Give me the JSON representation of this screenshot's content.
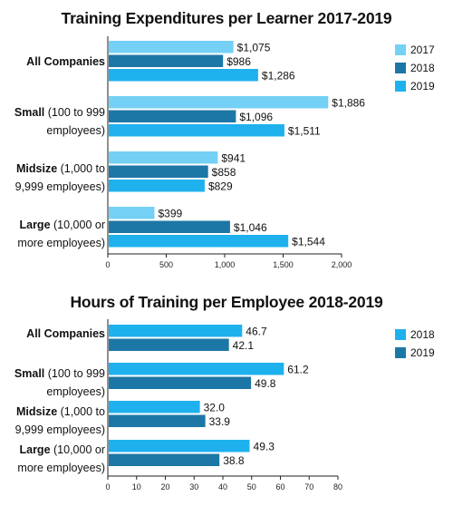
{
  "chart_data": [
    {
      "type": "bar",
      "orientation": "horizontal",
      "title": "Training Expenditures per Learner 2017-2019",
      "categories": [
        {
          "bold": "All Companies",
          "rest": ""
        },
        {
          "bold": "Small",
          "rest": " (100 to 999 employees)"
        },
        {
          "bold": "Midsize",
          "rest": " (1,000 to 9,999 employees)"
        },
        {
          "bold": "Large",
          "rest": " (10,000 or more employees)"
        }
      ],
      "series": [
        {
          "name": "2017",
          "color": "#75d0f5",
          "values": [
            1075,
            1886,
            941,
            399
          ],
          "labels": [
            "$1,075",
            "$1,886",
            "$941",
            "$399"
          ]
        },
        {
          "name": "2018",
          "color": "#1d77a6",
          "values": [
            986,
            1096,
            858,
            1046
          ],
          "labels": [
            "$986",
            "$1,096",
            "$858",
            "$1,046"
          ]
        },
        {
          "name": "2019",
          "color": "#1fb1ee",
          "values": [
            1286,
            1511,
            829,
            1544
          ],
          "labels": [
            "$1,286",
            "$1,511",
            "$829",
            "$1,544"
          ]
        }
      ],
      "xlim": [
        0,
        2000
      ],
      "xticks": [
        0,
        500,
        1000,
        1500,
        2000
      ],
      "xtick_labels": [
        "0",
        "500",
        "1,000",
        "1,500",
        "2,000"
      ],
      "legend_position": "right",
      "grid": false
    },
    {
      "type": "bar",
      "orientation": "horizontal",
      "title": "Hours of Training per Employee 2018-2019",
      "categories": [
        {
          "bold": "All Companies",
          "rest": ""
        },
        {
          "bold": "Small",
          "rest": " (100 to 999 employees)"
        },
        {
          "bold": "Midsize",
          "rest": " (1,000 to 9,999 employees)"
        },
        {
          "bold": "Large",
          "rest": " (10,000 or more employees)"
        }
      ],
      "series": [
        {
          "name": "2018",
          "color": "#1fb1ee",
          "values": [
            46.7,
            61.2,
            32.0,
            49.3
          ],
          "labels": [
            "46.7",
            "61.2",
            "32.0",
            "49.3"
          ]
        },
        {
          "name": "2019",
          "color": "#1d77a6",
          "values": [
            42.1,
            49.8,
            33.9,
            38.8
          ],
          "labels": [
            "42.1",
            "49.8",
            "33.9",
            "38.8"
          ]
        }
      ],
      "xlim": [
        0,
        80
      ],
      "xticks": [
        0,
        10,
        20,
        30,
        40,
        50,
        60,
        70,
        80
      ],
      "xtick_labels": [
        "0",
        "10",
        "20",
        "30",
        "40",
        "50",
        "60",
        "70",
        "80"
      ],
      "legend_position": "right",
      "grid": false
    }
  ]
}
